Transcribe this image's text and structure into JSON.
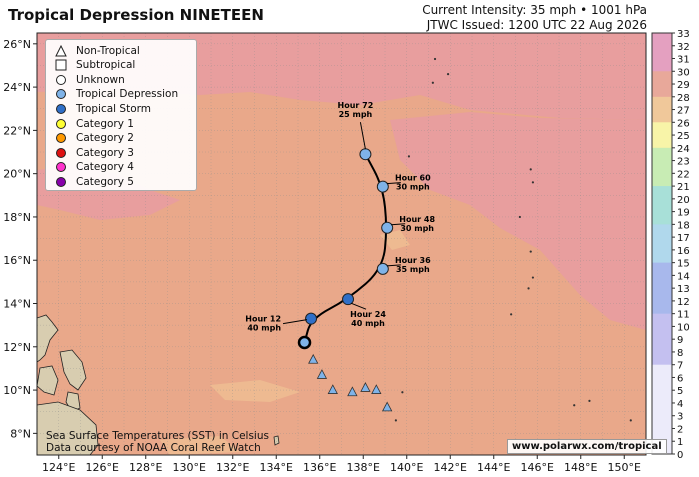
{
  "header": {
    "title": "Tropical Depression NINETEEN",
    "intensity": "Current Intensity: 35 mph • 1001 hPa",
    "issued": "JTWC Issued: 1200 UTC 22 Aug 2026"
  },
  "legend": {
    "items": [
      {
        "label": "Non-Tropical",
        "symbol": "triangle-icon",
        "color": "#ffffff"
      },
      {
        "label": "Subtropical",
        "symbol": "square-icon",
        "color": "#ffffff"
      },
      {
        "label": "Unknown",
        "symbol": "circle-icon",
        "color": "#ffffff"
      },
      {
        "label": "Tropical Depression",
        "symbol": "circle-icon",
        "color": "#7fb3e8"
      },
      {
        "label": "Tropical Storm",
        "symbol": "circle-icon",
        "color": "#2f6fc7"
      },
      {
        "label": "Category 1",
        "symbol": "circle-icon",
        "color": "#ffff33"
      },
      {
        "label": "Category 2",
        "symbol": "circle-icon",
        "color": "#ff9900"
      },
      {
        "label": "Category 3",
        "symbol": "circle-icon",
        "color": "#dd1111"
      },
      {
        "label": "Category 4",
        "symbol": "circle-icon",
        "color": "#ff33cc"
      },
      {
        "label": "Category 5",
        "symbol": "circle-icon",
        "color": "#8800aa"
      }
    ]
  },
  "map": {
    "lon_range": [
      123,
      151
    ],
    "lat_range": [
      7,
      26.5
    ],
    "lon_ticks": [
      {
        "v": 124,
        "label": "124°E"
      },
      {
        "v": 126,
        "label": "126°E"
      },
      {
        "v": 128,
        "label": "128°E"
      },
      {
        "v": 130,
        "label": "130°E"
      },
      {
        "v": 132,
        "label": "132°E"
      },
      {
        "v": 134,
        "label": "134°E"
      },
      {
        "v": 136,
        "label": "136°E"
      },
      {
        "v": 138,
        "label": "138°E"
      },
      {
        "v": 140,
        "label": "140°E"
      },
      {
        "v": 142,
        "label": "142°E"
      },
      {
        "v": 144,
        "label": "144°E"
      },
      {
        "v": 146,
        "label": "146°E"
      },
      {
        "v": 148,
        "label": "148°E"
      },
      {
        "v": 150,
        "label": "150°E"
      }
    ],
    "lat_ticks": [
      {
        "v": 8,
        "label": "8°N"
      },
      {
        "v": 10,
        "label": "10°N"
      },
      {
        "v": 12,
        "label": "12°N"
      },
      {
        "v": 14,
        "label": "14°N"
      },
      {
        "v": 16,
        "label": "16°N"
      },
      {
        "v": 18,
        "label": "18°N"
      },
      {
        "v": 20,
        "label": "20°N"
      },
      {
        "v": 22,
        "label": "22°N"
      },
      {
        "v": 24,
        "label": "24°N"
      },
      {
        "v": 26,
        "label": "26°N"
      }
    ],
    "colors": {
      "ocean": "#e9a88a",
      "warm": "#e89ca0",
      "cool": "#efbd92",
      "land": "#d8cdb0",
      "track": "#000000"
    }
  },
  "past_track": [
    {
      "lon": 135.7,
      "lat": 11.4,
      "type": "triangle-icon"
    },
    {
      "lon": 136.1,
      "lat": 10.7,
      "type": "triangle-icon"
    },
    {
      "lon": 136.6,
      "lat": 10.0,
      "type": "triangle-icon"
    },
    {
      "lon": 137.5,
      "lat": 9.9,
      "type": "triangle-icon"
    },
    {
      "lon": 138.1,
      "lat": 10.1,
      "type": "triangle-icon"
    },
    {
      "lon": 138.6,
      "lat": 10.0,
      "type": "triangle-icon"
    },
    {
      "lon": 139.1,
      "lat": 9.2,
      "type": "triangle-icon"
    }
  ],
  "forecast": [
    {
      "lon": 135.3,
      "lat": 12.2,
      "label": "",
      "wind": "",
      "type": "current"
    },
    {
      "lon": 135.6,
      "lat": 13.3,
      "label": "Hour 12",
      "wind": "40 mph",
      "type": "ts",
      "side": "left"
    },
    {
      "lon": 137.3,
      "lat": 14.2,
      "label": "Hour 24",
      "wind": "40 mph",
      "type": "ts",
      "side": "below"
    },
    {
      "lon": 138.9,
      "lat": 15.6,
      "label": "Hour 36",
      "wind": "35 mph",
      "type": "td",
      "side": "right"
    },
    {
      "lon": 139.1,
      "lat": 17.5,
      "label": "Hour 48",
      "wind": "30 mph",
      "type": "td",
      "side": "right"
    },
    {
      "lon": 138.9,
      "lat": 19.4,
      "label": "Hour 60",
      "wind": "30 mph",
      "type": "td",
      "side": "right"
    },
    {
      "lon": 138.1,
      "lat": 20.9,
      "label": "Hour 72",
      "wind": "25 mph",
      "type": "td",
      "side": "above"
    }
  ],
  "colorbar": {
    "ticks": [
      "33",
      "32",
      "31",
      "30",
      "29",
      "28",
      "27",
      "26",
      "25",
      "24",
      "23",
      "22",
      "21",
      "20",
      "19",
      "18",
      "17",
      "16",
      "15",
      "14",
      "13",
      "12",
      "11",
      "10",
      "9",
      "8",
      "7",
      "6",
      "5",
      "4",
      "3",
      "2",
      "1",
      "0"
    ]
  },
  "credit": {
    "line1": "Sea Surface Temperatures (SST) in Celsius",
    "line2": "Data courtesy of NOAA Coral Reef Watch"
  },
  "site": "www.polarwx.com/tropical"
}
